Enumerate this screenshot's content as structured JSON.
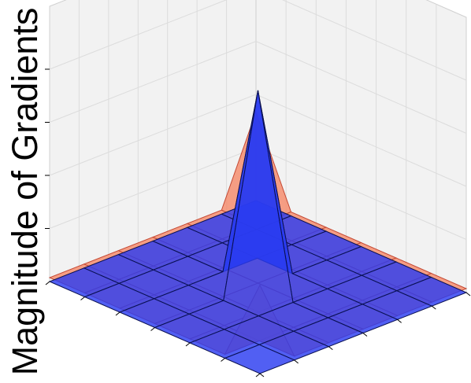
{
  "chart_data": {
    "type": "surface3d",
    "zlabel": "Magnitude of Gradients",
    "x": [
      -3,
      -2,
      -1,
      0,
      1,
      2,
      3
    ],
    "y": [
      -3,
      -2,
      -1,
      0,
      1,
      2,
      3
    ],
    "surfaces": [
      {
        "color": "#2b3cf0",
        "z": [
          [
            0,
            0,
            0,
            0,
            0,
            0,
            0
          ],
          [
            0,
            0,
            0,
            0,
            0,
            0,
            0
          ],
          [
            0,
            0,
            0,
            0,
            0,
            0,
            0
          ],
          [
            0,
            0,
            0,
            1,
            0,
            0,
            0
          ],
          [
            0,
            0,
            0,
            0,
            0,
            0,
            0
          ],
          [
            0,
            0,
            0,
            0,
            0,
            0,
            0
          ],
          [
            0,
            0,
            0,
            0,
            0,
            0,
            0
          ]
        ]
      },
      {
        "color": "#f58a6a",
        "z": [
          [
            0.02,
            0.02,
            0.02,
            0.02,
            0.02,
            0.02,
            0.45
          ],
          [
            0.02,
            0.02,
            0.02,
            0.02,
            0.02,
            0.02,
            0.02
          ],
          [
            0.02,
            0.02,
            0.02,
            0.02,
            0.02,
            0.02,
            0.02
          ],
          [
            0.02,
            0.02,
            0.02,
            0.02,
            0.02,
            0.02,
            0.02
          ],
          [
            0.02,
            0.02,
            0.02,
            0.02,
            0.02,
            0.02,
            0.02
          ],
          [
            0.02,
            0.02,
            0.02,
            0.02,
            0.02,
            0.02,
            0.02
          ],
          [
            0.45,
            0.02,
            0.02,
            0.02,
            0.02,
            0.02,
            0.02
          ]
        ]
      }
    ],
    "zlim": [
      0,
      1
    ],
    "grid": true,
    "pane_color": "#f2f2f2"
  }
}
